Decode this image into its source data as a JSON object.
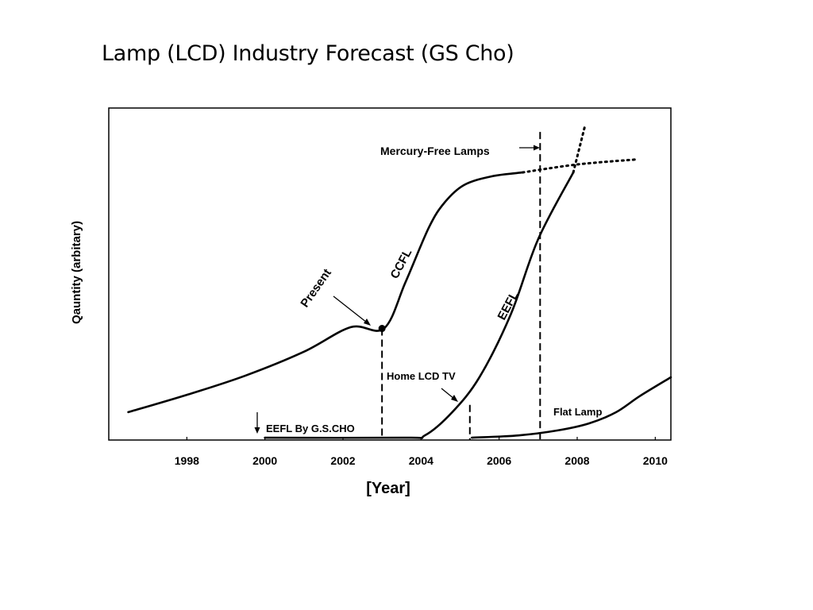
{
  "slide": {
    "title": "Lamp (LCD) Industry Forecast (GS Cho)"
  },
  "chart_data": {
    "type": "line",
    "title": "Lamp (LCD) Industry Forecast (GS Cho)",
    "xlabel": "[Year]",
    "ylabel": "Qauntity (arbitary)",
    "xlim": [
      1996,
      2010.4
    ],
    "ylim": [
      0,
      100
    ],
    "xticks": [
      1998,
      2000,
      2002,
      2004,
      2006,
      2008,
      2010
    ],
    "grid": false,
    "legend": "none",
    "series": [
      {
        "name": "CCFL",
        "style": "solid",
        "x": [
          1996.5,
          1998,
          1999.5,
          2001,
          2002.2,
          2003.05,
          2003.6,
          2004.2,
          2004.6,
          2005.1,
          2005.8,
          2006.6
        ],
        "y": [
          8.4,
          13.6,
          19.4,
          26.6,
          34.0,
          33.6,
          47.5,
          64.0,
          71.5,
          76.8,
          79.4,
          80.6
        ]
      },
      {
        "name": "CCFL forecast",
        "style": "dotted",
        "x": [
          2006.6,
          2008,
          2009.5
        ],
        "y": [
          80.6,
          83.0,
          84.5
        ]
      },
      {
        "name": "EEFL",
        "style": "solid",
        "x": [
          2000,
          2003.6,
          2004.1,
          2004.8,
          2005.5,
          2006.3,
          2007.0,
          2007.9
        ],
        "y": [
          0.7,
          0.7,
          1.4,
          8.4,
          19.0,
          37.9,
          60.5,
          80.6
        ]
      },
      {
        "name": "EEFL forecast",
        "style": "dotted",
        "x": [
          2007.9,
          2008.2
        ],
        "y": [
          80.6,
          94.7
        ]
      },
      {
        "name": "Flat Lamp",
        "style": "solid",
        "x": [
          2005.3,
          2006.5,
          2007.5,
          2008.3,
          2009.0,
          2009.6,
          2010.4
        ],
        "y": [
          0.7,
          1.4,
          2.9,
          5.0,
          8.4,
          13.2,
          18.9
        ]
      }
    ],
    "marker": {
      "label": "Present",
      "x": 2003.0,
      "y": 33.6
    },
    "vertical_markers": [
      {
        "x": 2003.0,
        "y_top": 33.6
      },
      {
        "x": 2005.25,
        "y_top": 10.6
      },
      {
        "x": 2007.05,
        "y_top": 92.8
      }
    ],
    "annotations": {
      "present": "Present",
      "ccfl": "CCFL",
      "eefl": "EEFL",
      "mercury_free": "Mercury-Free Lamps",
      "home_lcd_tv": "Home LCD TV",
      "flat_lamp": "Flat Lamp",
      "eefl_by": "EEFL By G.S.CHO"
    }
  }
}
